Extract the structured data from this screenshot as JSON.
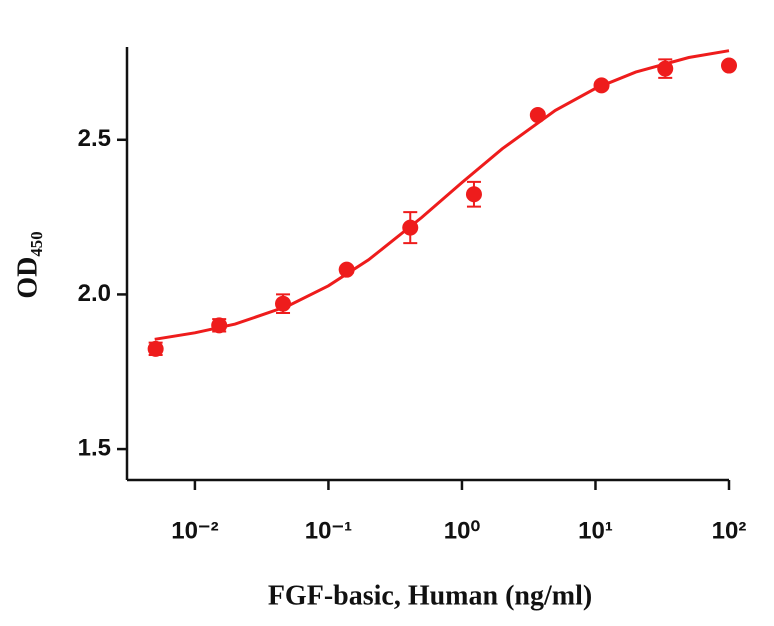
{
  "chart_data": {
    "type": "scatter",
    "x_label": "FGF-basic, Human (ng/ml)",
    "y_label": "OD₄₅₀",
    "x_scale": "log",
    "xlim": [
      0.0031,
      100
    ],
    "ylim": [
      1.4,
      2.8
    ],
    "xticks": [
      {
        "value": 0.01,
        "label": "10⁻²"
      },
      {
        "value": 0.1,
        "label": "10⁻¹"
      },
      {
        "value": 1,
        "label": "10⁰"
      },
      {
        "value": 10,
        "label": "10¹"
      },
      {
        "value": 100,
        "label": "10²"
      }
    ],
    "yticks": [
      1.5,
      {
        "value": 2,
        "label": "2.0"
      },
      2.5
    ],
    "series": [
      {
        "color": "#ee1c1c",
        "x": [
          0.00508,
          0.0152,
          0.0457,
          0.137,
          0.41,
          1.23,
          3.7,
          11.1,
          33.3,
          100
        ],
        "values": [
          1.824,
          1.9,
          1.97,
          2.08,
          2.216,
          2.324,
          2.58,
          2.676,
          2.73,
          2.74
        ],
        "errors": [
          0.02,
          0.02,
          0.03,
          0.01,
          0.05,
          0.04,
          0.01,
          0.01,
          0.03,
          0.01
        ]
      }
    ],
    "curve": {
      "color": "#ee1c1c",
      "x": [
        0.005,
        0.01,
        0.02,
        0.05,
        0.1,
        0.2,
        0.5,
        1,
        2,
        5,
        10,
        20,
        50,
        100
      ],
      "values": [
        1.855,
        1.876,
        1.904,
        1.963,
        2.028,
        2.112,
        2.249,
        2.362,
        2.471,
        2.595,
        2.666,
        2.719,
        2.766,
        2.788
      ]
    }
  }
}
